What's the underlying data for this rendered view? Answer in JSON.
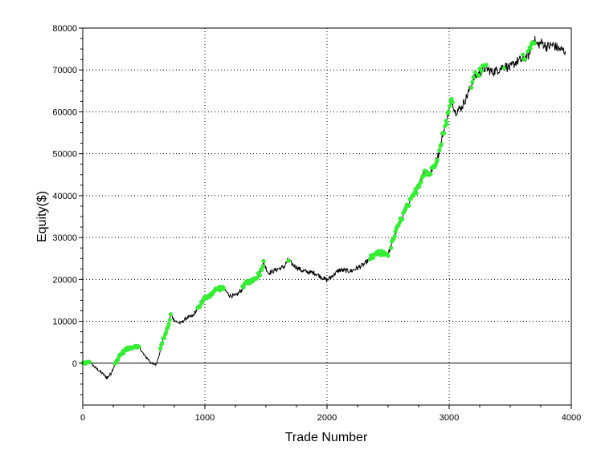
{
  "chart_data": {
    "type": "line",
    "title": "",
    "xlabel": "Trade Number",
    "ylabel": "Equity($)",
    "xlim": [
      0,
      4000
    ],
    "ylim": [
      -10000,
      80000
    ],
    "xticks": [
      0,
      1000,
      2000,
      3000,
      4000
    ],
    "xtick_labels": [
      "0",
      "1000",
      "2000",
      "3000",
      "4000"
    ],
    "yticks": [
      0,
      10000,
      20000,
      30000,
      40000,
      50000,
      60000,
      70000,
      80000
    ],
    "ytick_labels": [
      "0",
      "10000",
      "20000",
      "30000",
      "40000",
      "50000",
      "60000",
      "70000",
      "80000"
    ],
    "grid": true,
    "legend": "none",
    "colors": {
      "equity_line": "#000000",
      "new_high_markers": "#33ee33",
      "grid": "#000000",
      "zero_line": "#000000"
    },
    "series": [
      {
        "values": [
          [
            0,
            0
          ],
          [
            60,
            200
          ],
          [
            100,
            -1000
          ],
          [
            150,
            -2200
          ],
          [
            200,
            -3500
          ],
          [
            230,
            -2500
          ],
          [
            260,
            -500
          ],
          [
            300,
            1800
          ],
          [
            350,
            3200
          ],
          [
            400,
            3800
          ],
          [
            440,
            4200
          ],
          [
            470,
            3500
          ],
          [
            500,
            2000
          ],
          [
            540,
            800
          ],
          [
            570,
            -200
          ],
          [
            600,
            -300
          ],
          [
            620,
            1500
          ],
          [
            650,
            5000
          ],
          [
            700,
            9000
          ],
          [
            720,
            11500
          ],
          [
            760,
            10000
          ],
          [
            800,
            9500
          ],
          [
            850,
            10800
          ],
          [
            900,
            11200
          ],
          [
            950,
            13500
          ],
          [
            1000,
            15500
          ],
          [
            1050,
            16500
          ],
          [
            1100,
            17800
          ],
          [
            1150,
            18000
          ],
          [
            1200,
            16200
          ],
          [
            1250,
            16000
          ],
          [
            1300,
            17500
          ],
          [
            1340,
            19200
          ],
          [
            1400,
            20000
          ],
          [
            1450,
            21500
          ],
          [
            1480,
            24000
          ],
          [
            1520,
            21500
          ],
          [
            1560,
            22000
          ],
          [
            1600,
            22500
          ],
          [
            1650,
            23000
          ],
          [
            1680,
            24700
          ],
          [
            1720,
            23500
          ],
          [
            1800,
            22000
          ],
          [
            1900,
            21500
          ],
          [
            2000,
            19800
          ],
          [
            2050,
            21000
          ],
          [
            2100,
            22200
          ],
          [
            2200,
            22000
          ],
          [
            2300,
            23500
          ],
          [
            2360,
            25200
          ],
          [
            2400,
            26000
          ],
          [
            2450,
            26300
          ],
          [
            2500,
            26000
          ],
          [
            2530,
            28500
          ],
          [
            2560,
            31000
          ],
          [
            2600,
            34000
          ],
          [
            2650,
            37000
          ],
          [
            2700,
            39500
          ],
          [
            2750,
            42500
          ],
          [
            2800,
            46000
          ],
          [
            2840,
            45000
          ],
          [
            2880,
            47500
          ],
          [
            2920,
            50500
          ],
          [
            2950,
            55000
          ],
          [
            2980,
            58000
          ],
          [
            3020,
            63000
          ],
          [
            3050,
            60000
          ],
          [
            3100,
            61000
          ],
          [
            3150,
            64000
          ],
          [
            3200,
            68000
          ],
          [
            3250,
            69500
          ],
          [
            3300,
            70500
          ],
          [
            3350,
            69500
          ],
          [
            3400,
            70000
          ],
          [
            3450,
            71000
          ],
          [
            3500,
            70500
          ],
          [
            3550,
            72000
          ],
          [
            3600,
            72500
          ],
          [
            3650,
            73500
          ],
          [
            3690,
            77500
          ],
          [
            3720,
            76000
          ],
          [
            3760,
            76500
          ],
          [
            3800,
            75500
          ],
          [
            3850,
            76000
          ],
          [
            3900,
            75000
          ],
          [
            3950,
            74500
          ]
        ]
      }
    ],
    "new_high_ranges": [
      [
        0,
        60
      ],
      [
        260,
        460
      ],
      [
        620,
        720
      ],
      [
        940,
        1160
      ],
      [
        1300,
        1490
      ],
      [
        1680,
        1690
      ],
      [
        2350,
        2500
      ],
      [
        2520,
        3030
      ],
      [
        3180,
        3310
      ],
      [
        3450,
        3460
      ],
      [
        3600,
        3700
      ]
    ]
  }
}
